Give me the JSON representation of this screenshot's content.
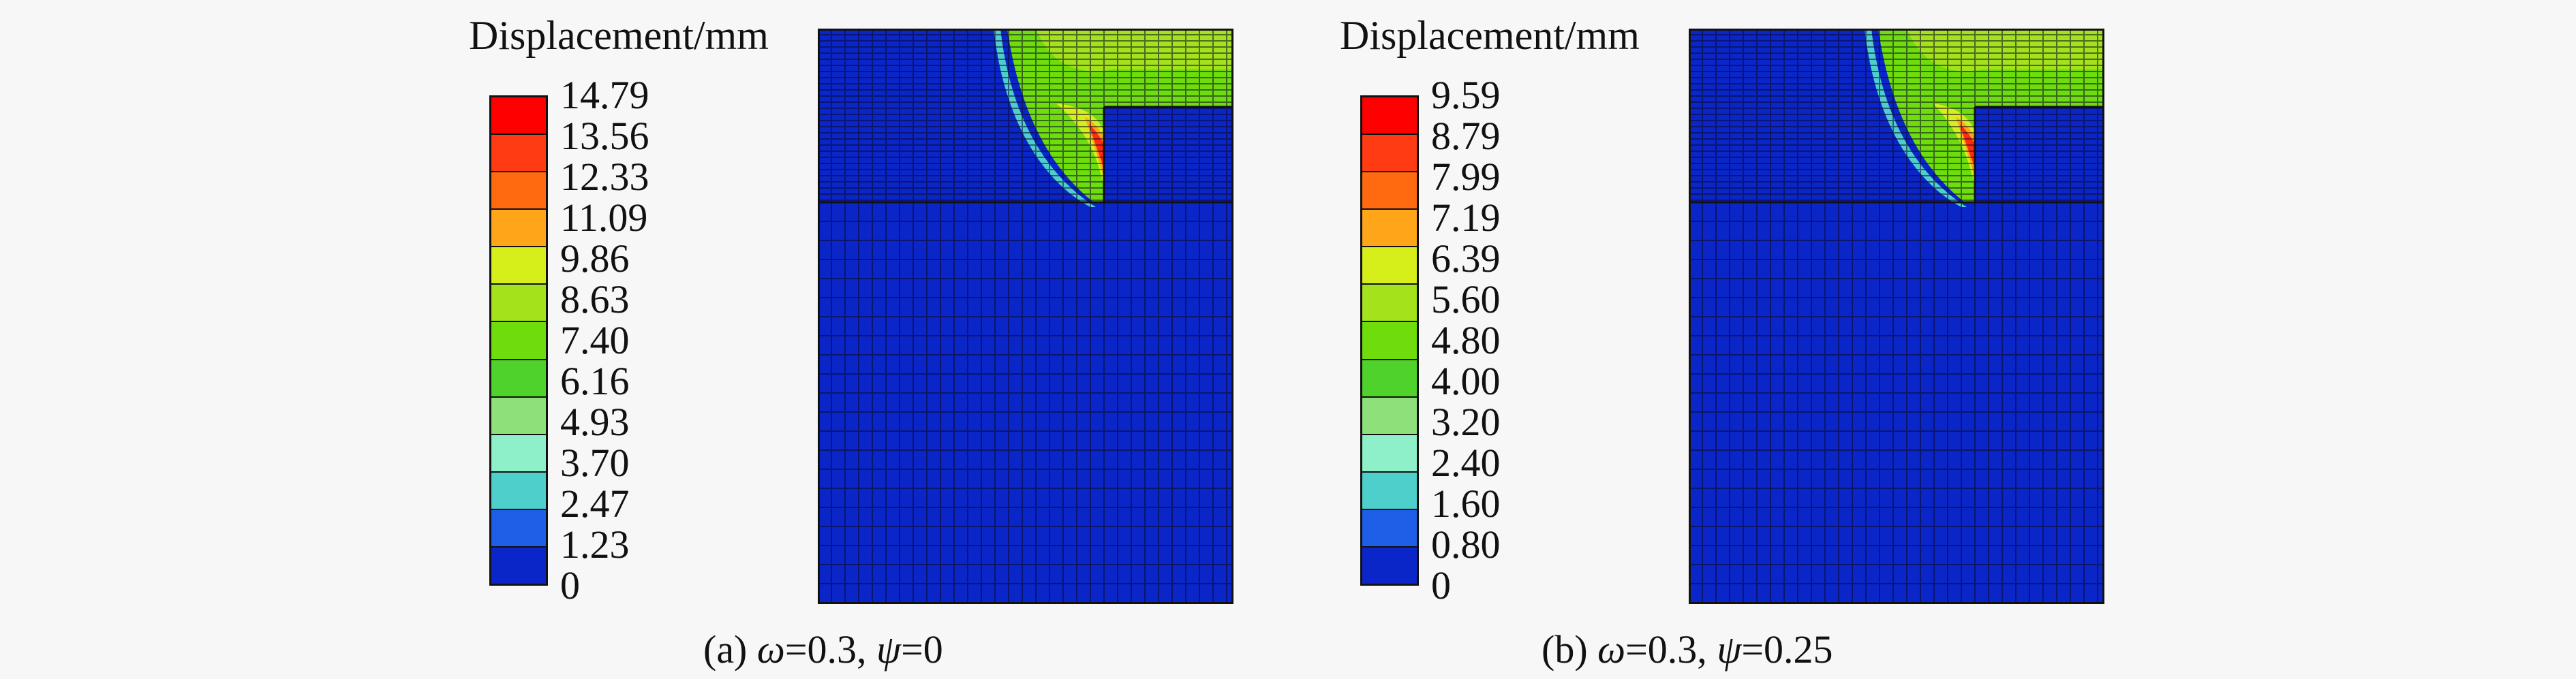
{
  "legend_colors": [
    "#ff0000",
    "#ff3b14",
    "#ff6a10",
    "#ffa51a",
    "#d6ee1a",
    "#a4e21c",
    "#6fdc0c",
    "#4fd32c",
    "#8ee07a",
    "#8ef0c8",
    "#4ecfcb",
    "#1f5ee6",
    "#0b26c8"
  ],
  "panel_a": {
    "legend_title": "Displacement/mm",
    "ticks": [
      "14.79",
      "13.56",
      "12.33",
      "11.09",
      "9.86",
      "8.63",
      "7.40",
      "6.16",
      "4.93",
      "3.70",
      "2.47",
      "1.23",
      "0"
    ],
    "caption_prefix": "(a) ",
    "omega_symbol": "ω",
    "omega_value": "=0.3, ",
    "psi_symbol": "ψ",
    "psi_value": "=0"
  },
  "panel_b": {
    "legend_title": "Displacement/mm",
    "ticks": [
      "9.59",
      "8.79",
      "7.99",
      "7.19",
      "6.39",
      "5.60",
      "4.80",
      "4.00",
      "3.20",
      "2.40",
      "1.60",
      "0.80",
      "0"
    ],
    "caption_prefix": "(b) ",
    "omega_symbol": "ω",
    "omega_value": "=0.3, ",
    "psi_symbol": "ψ",
    "psi_value": "=0.25"
  },
  "palette": {
    "deep_blue": "#0b26c8",
    "mid_blue": "#1f5ee6",
    "green": "#6fdc0c",
    "light_green": "#a4e21c",
    "yellow_green": "#d6ee1a",
    "orange": "#ffa51a",
    "red": "#ff2a10",
    "mesh_line": "#0a0a2a"
  }
}
